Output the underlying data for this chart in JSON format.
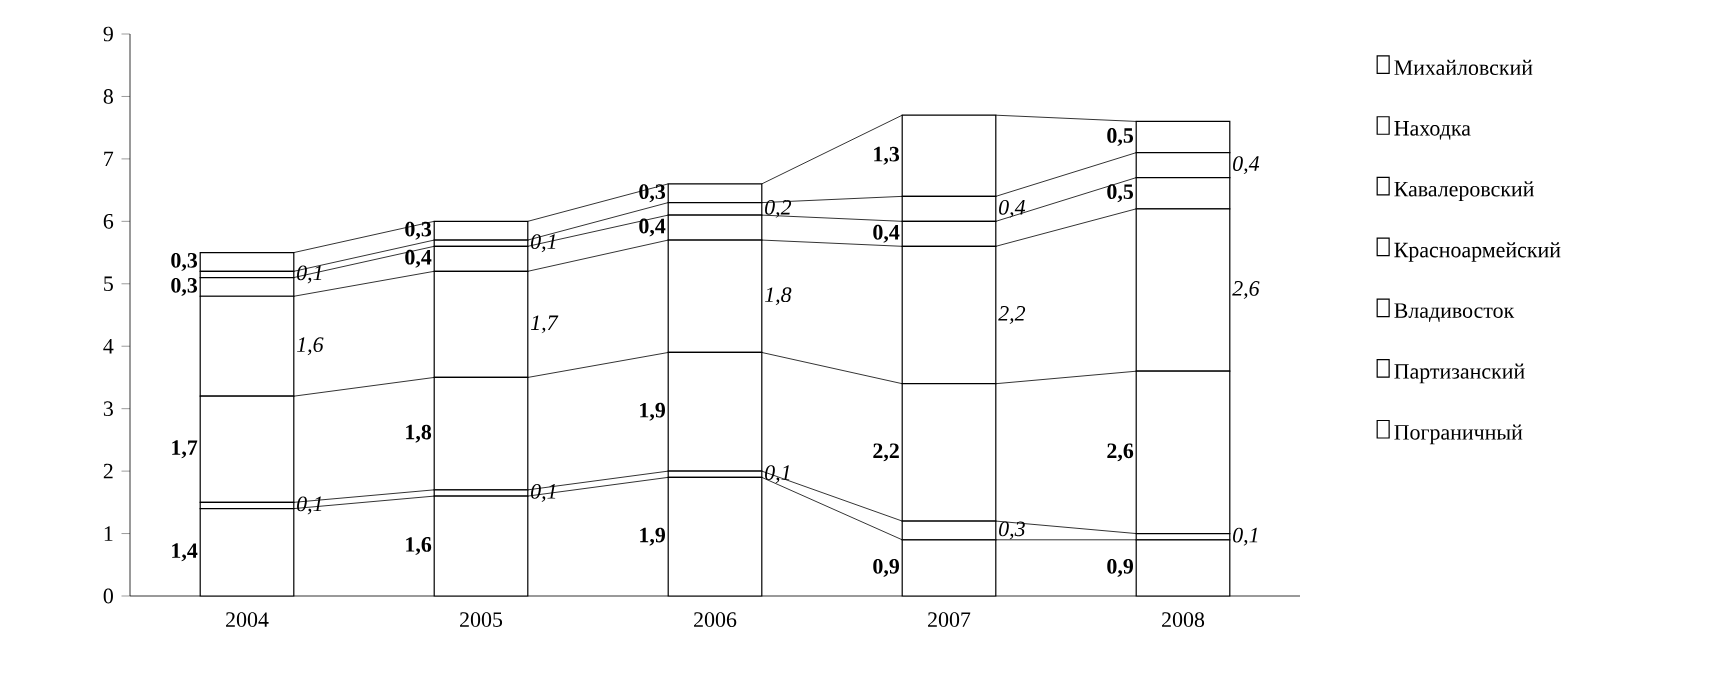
{
  "chart_data": {
    "type": "bar",
    "stacked": true,
    "categories": [
      "2004",
      "2005",
      "2006",
      "2007",
      "2008"
    ],
    "series": [
      {
        "name": "Пограничный",
        "color": "#ffffff",
        "values": [
          1.4,
          1.6,
          1.9,
          0.9,
          0.9
        ],
        "value_labels": [
          "1,4",
          "1,6",
          "1,9",
          "0,9",
          "0,9"
        ]
      },
      {
        "name": "Партизанский",
        "color": "#ffffff",
        "values": [
          0.1,
          0.1,
          0.1,
          0.3,
          0.1
        ],
        "value_labels": [
          "0,1",
          "0,1",
          "0,1",
          "0,3",
          "0,1"
        ]
      },
      {
        "name": "Владивосток",
        "color": "#ffffff",
        "values": [
          1.7,
          1.8,
          1.9,
          2.2,
          2.6
        ],
        "value_labels": [
          "1,7",
          "1,8",
          "1,9",
          "2,2",
          "2,6"
        ]
      },
      {
        "name": "Красноармейский",
        "color": "#ffffff",
        "values": [
          1.6,
          1.7,
          1.8,
          2.2,
          2.6
        ],
        "value_labels": [
          "1,6",
          "1,7",
          "1,8",
          "2,2",
          "2,6"
        ]
      },
      {
        "name": "Кавалеровский",
        "color": "#ffffff",
        "values": [
          0.3,
          0.4,
          0.4,
          0.4,
          0.5
        ],
        "value_labels": [
          "0,3",
          "0,4",
          "0,4",
          "0,4",
          "0,5"
        ]
      },
      {
        "name": "Находка",
        "color": "#ffffff",
        "values": [
          0.1,
          0.1,
          0.2,
          0.4,
          0.4
        ],
        "value_labels": [
          "0,1",
          "0,1",
          "0,2",
          "0,4",
          "0,4"
        ]
      },
      {
        "name": "Михайловский",
        "color": "#ffffff",
        "values": [
          0.3,
          0.3,
          0.3,
          1.3,
          0.5
        ],
        "value_labels": [
          "0,3",
          "0,3",
          "0,3",
          "1,3",
          "0,5"
        ]
      }
    ],
    "ylim": [
      0,
      9
    ],
    "yticks": [
      0,
      1,
      2,
      3,
      4,
      5,
      6,
      7,
      8,
      9
    ],
    "legend": "right"
  }
}
